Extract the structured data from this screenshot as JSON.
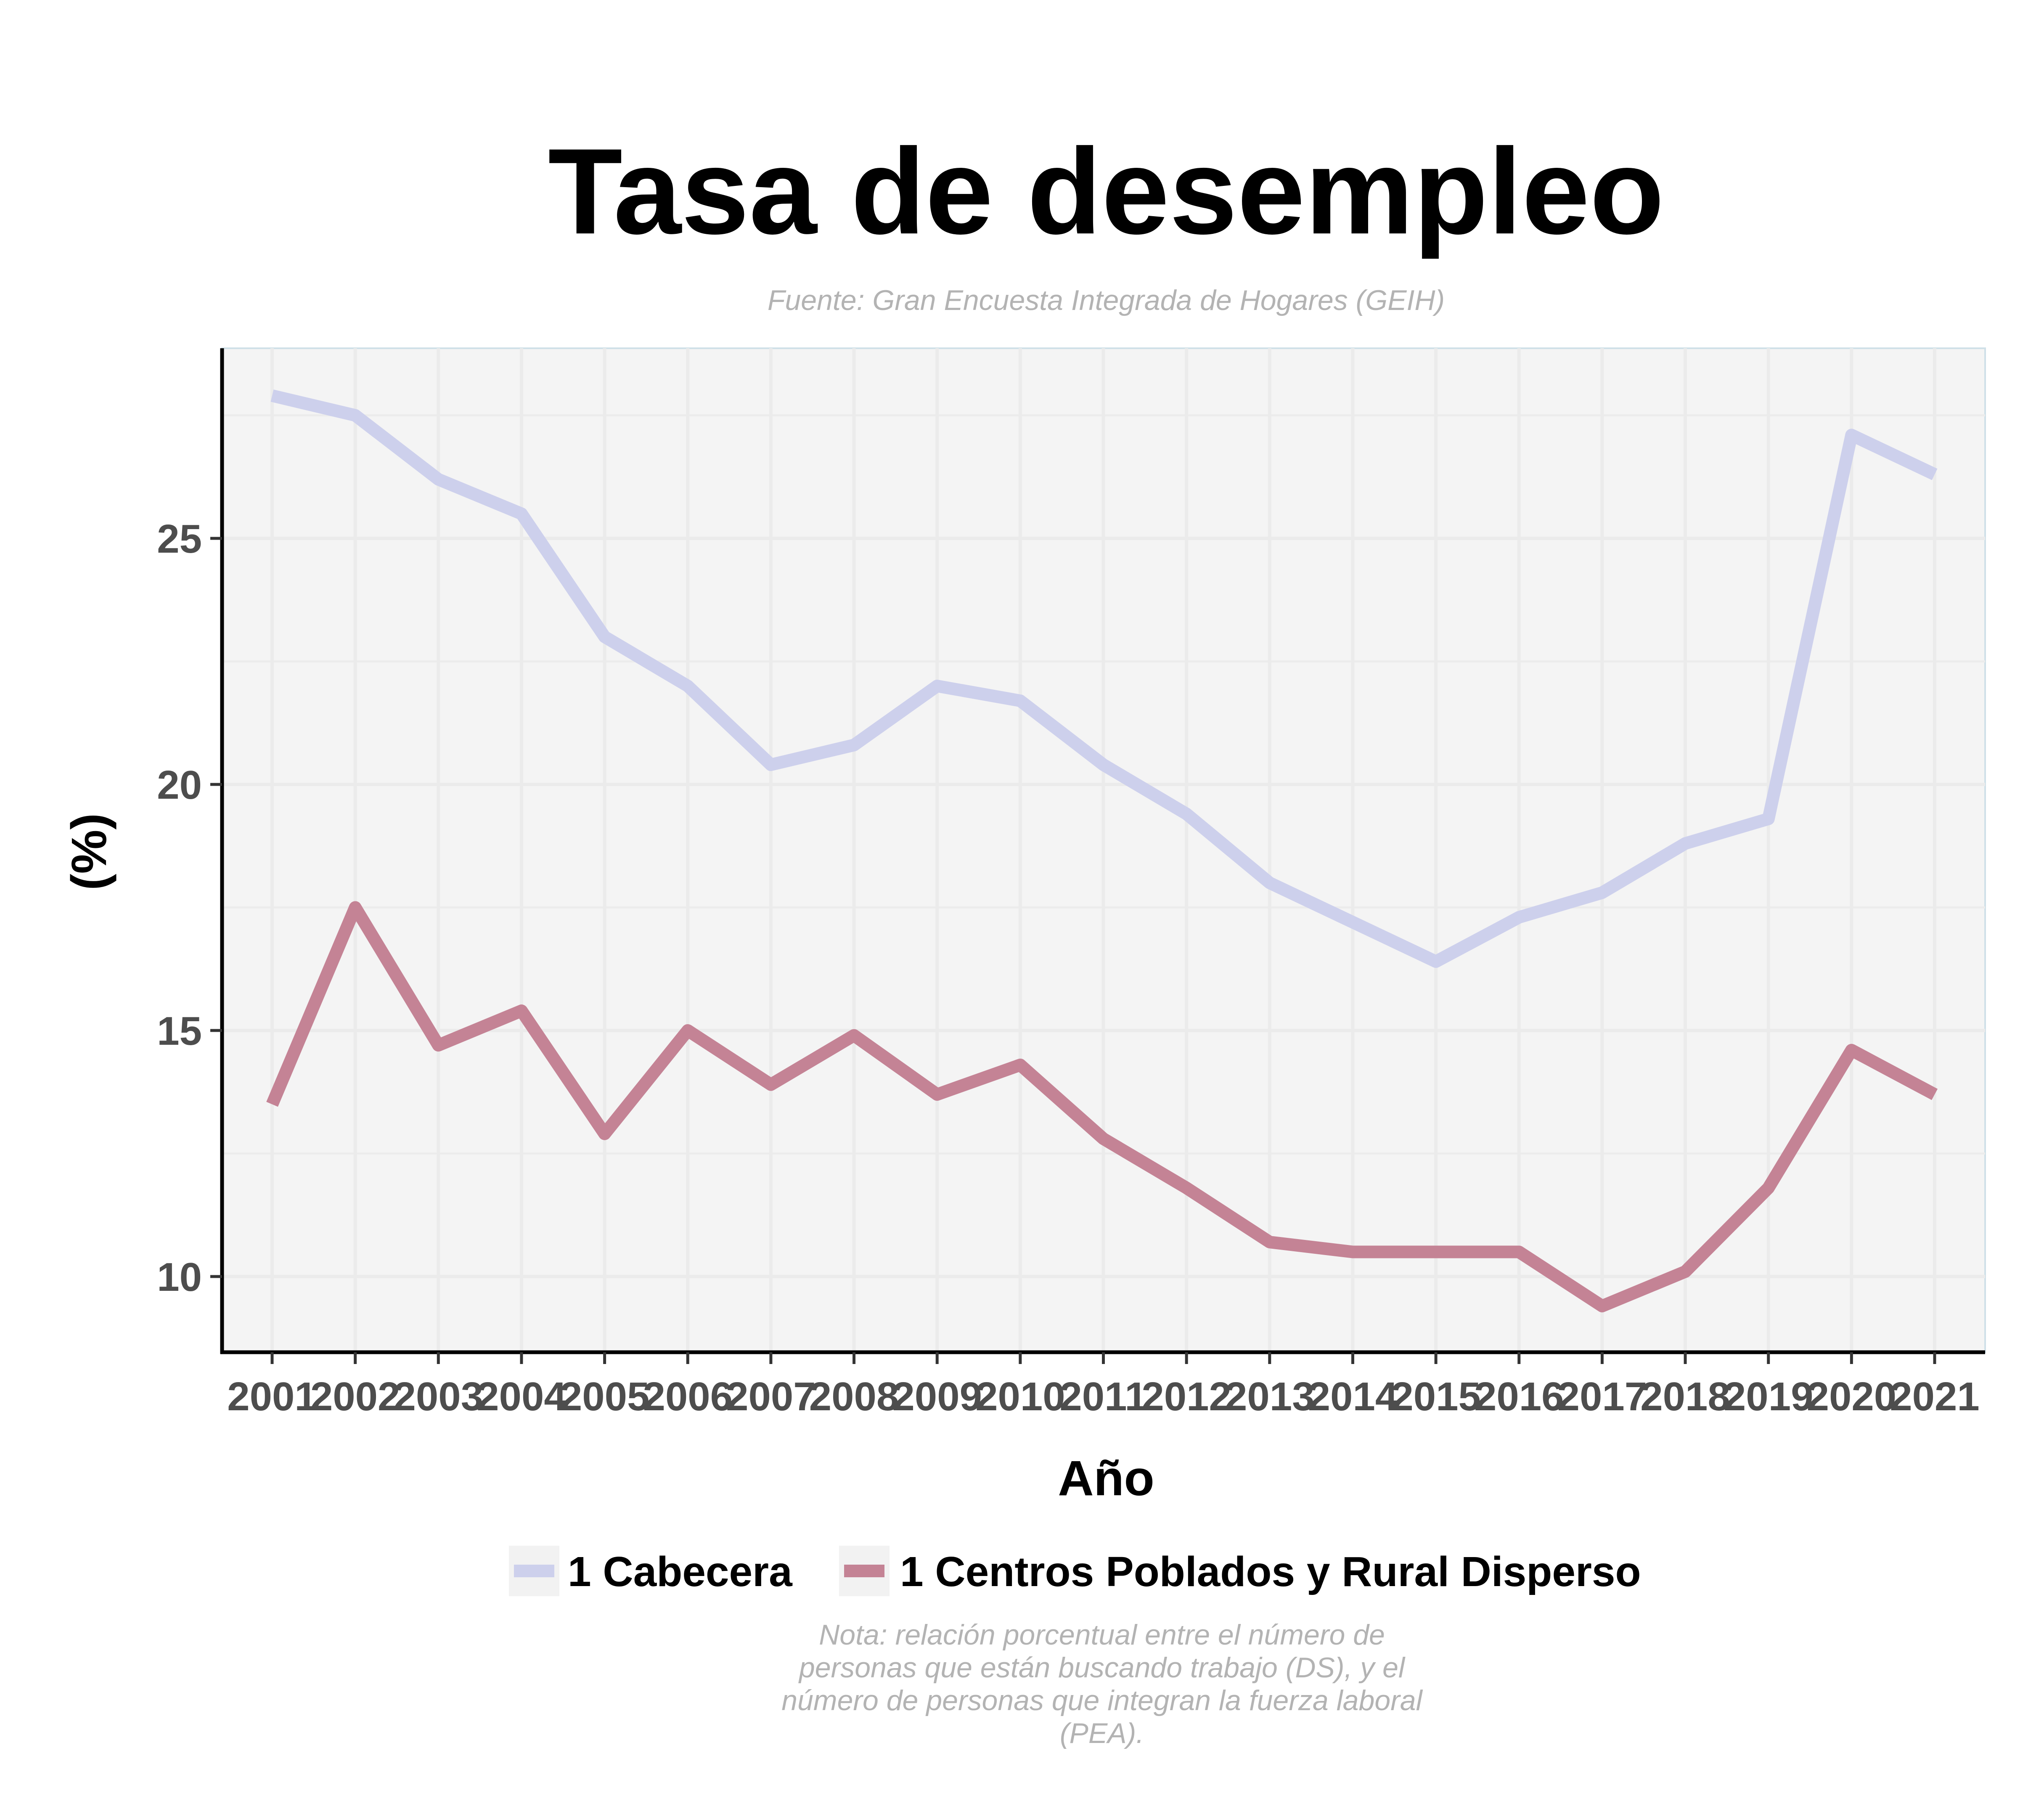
{
  "chart_data": {
    "type": "line",
    "title": "Tasa de desempleo",
    "subtitle": "Fuente: Gran Encuesta Integrada de Hogares (GEIH)",
    "xlabel": "Año",
    "ylabel": "(%)",
    "x": [
      "2001",
      "2002",
      "2003",
      "2004",
      "2005",
      "2006",
      "2007",
      "2008",
      "2009",
      "2010",
      "2011",
      "2012",
      "2013",
      "2014",
      "2015",
      "2016",
      "2017",
      "2018",
      "2019",
      "2020",
      "2021"
    ],
    "yticks": [
      10,
      15,
      20,
      25
    ],
    "ylim": [
      8.5,
      29
    ],
    "grid": true,
    "legend_position": "bottom",
    "series": [
      {
        "name": "1 Cabecera",
        "color": "#cdd0ec",
        "values": [
          27.9,
          27.5,
          26.2,
          25.5,
          23.0,
          22.0,
          20.4,
          20.8,
          22.0,
          21.7,
          20.4,
          19.4,
          18.0,
          17.2,
          16.4,
          17.3,
          17.8,
          18.8,
          19.3,
          27.1,
          26.3
        ]
      },
      {
        "name": "1 Centros Poblados y Rural Disperso",
        "color": "#c48395",
        "values": [
          13.5,
          17.5,
          14.7,
          15.4,
          12.9,
          15.0,
          13.9,
          14.9,
          13.7,
          14.3,
          12.8,
          11.8,
          10.7,
          10.5,
          10.5,
          10.5,
          9.4,
          10.1,
          11.8,
          14.6,
          13.7
        ]
      }
    ],
    "caption": [
      "Nota: relación porcentual entre el número de",
      "personas que están buscando trabajo (DS), y el",
      "número de personas que integran la fuerza laboral",
      "(PEA)."
    ]
  }
}
